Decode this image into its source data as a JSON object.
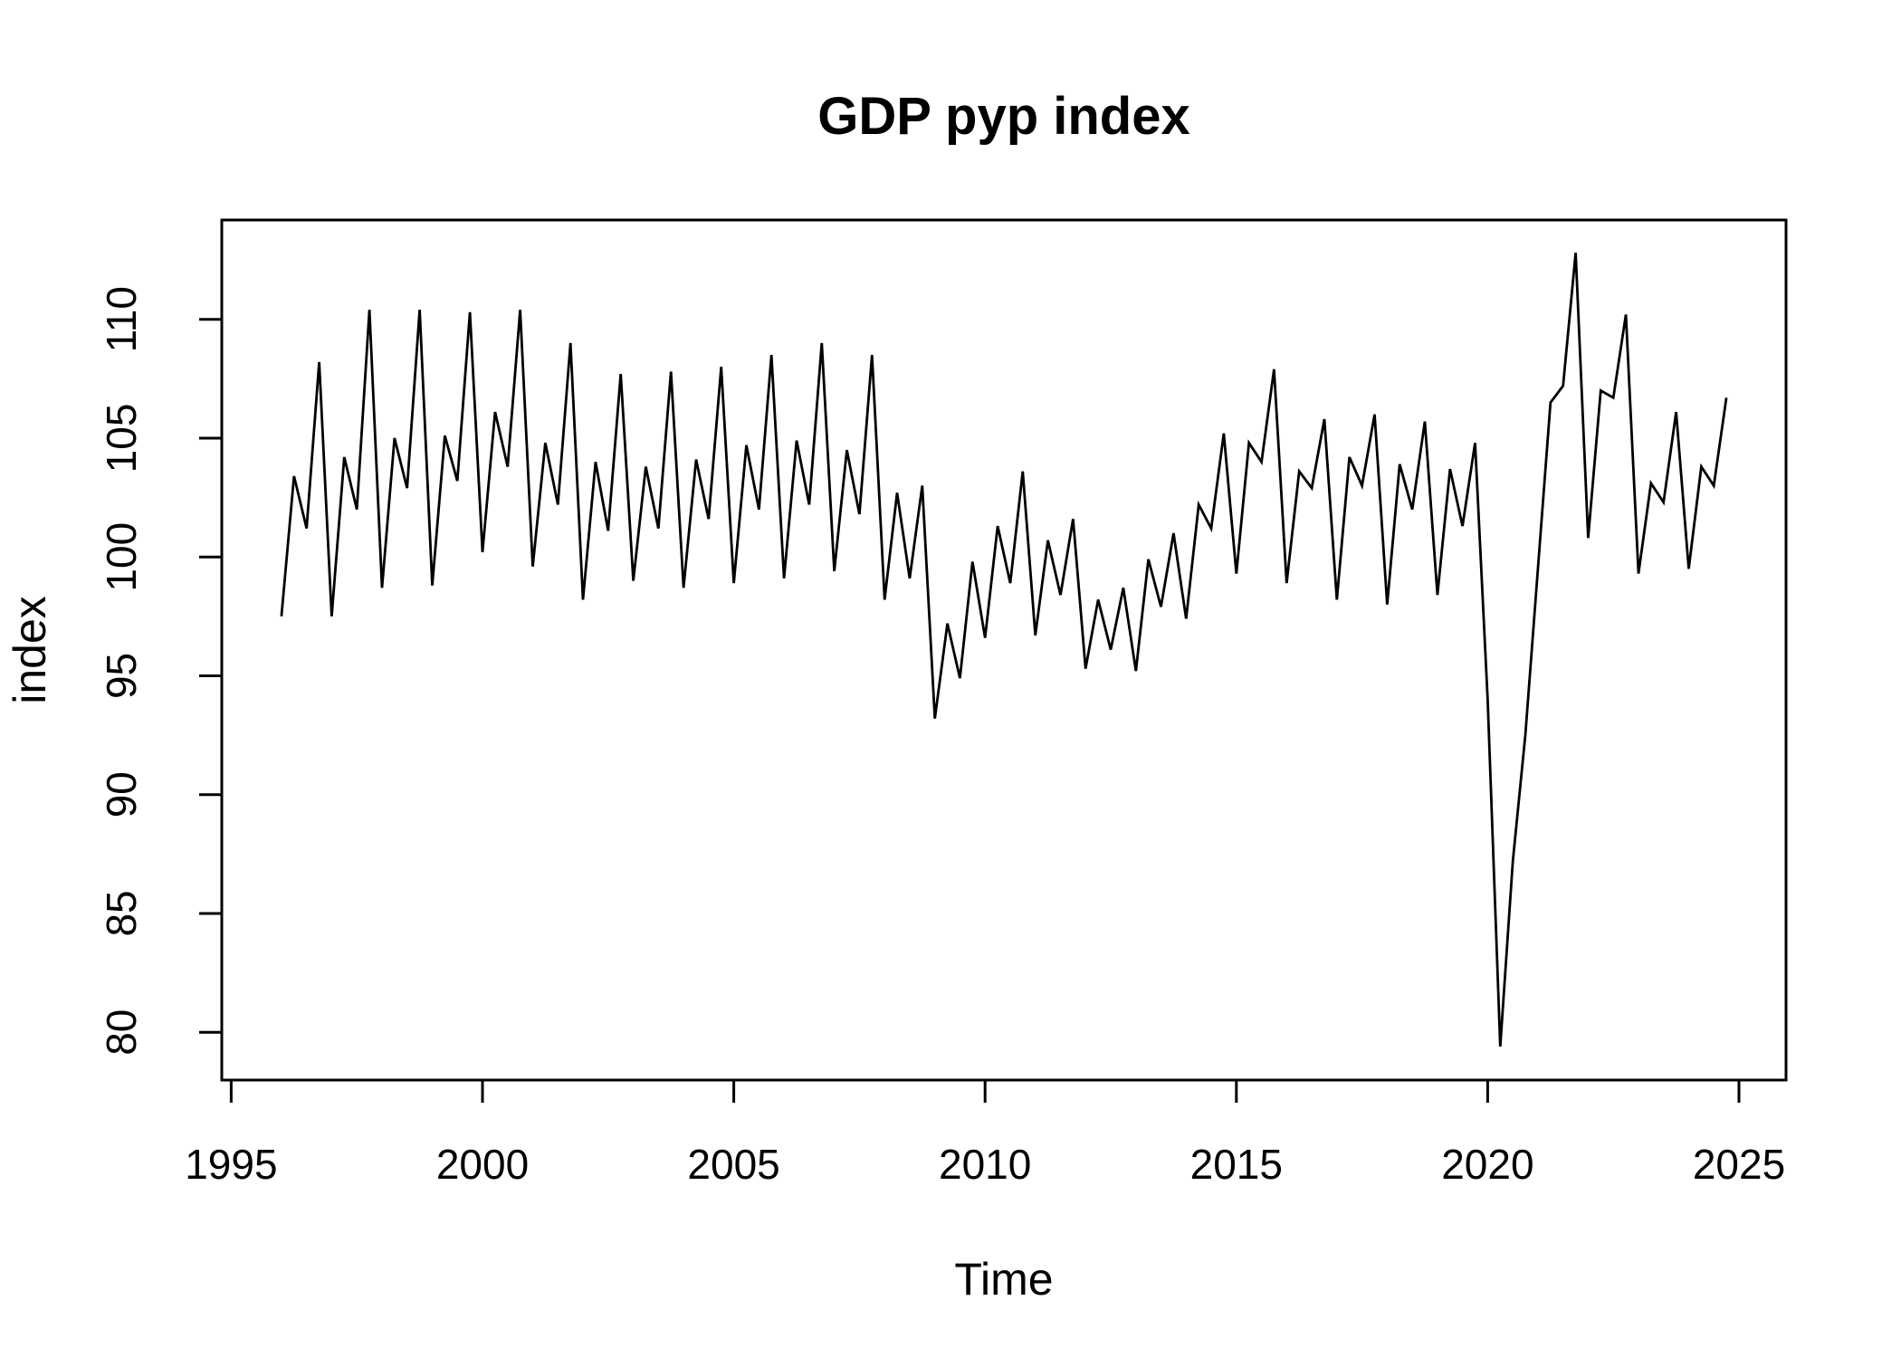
{
  "chart_data": {
    "type": "line",
    "title": "GDP pyp index",
    "xlabel": "Time",
    "ylabel": "index",
    "frequency": "quarterly",
    "x_start": 1996.0,
    "x_step": 0.25,
    "xlim": [
      1994.8,
      2025.9
    ],
    "ylim": [
      78.0,
      114.2
    ],
    "x_ticks": [
      1995,
      2000,
      2005,
      2010,
      2015,
      2020,
      2025
    ],
    "y_ticks": [
      80,
      85,
      90,
      95,
      100,
      105,
      110
    ],
    "grid": false,
    "legend_position": "none",
    "line_color": "#000000",
    "background_color": "#ffffff",
    "series": [
      {
        "name": "GDP pyp index",
        "values": [
          97.5,
          103.4,
          101.2,
          108.2,
          97.5,
          104.2,
          102.0,
          110.4,
          98.7,
          105.0,
          102.9,
          110.4,
          98.8,
          105.1,
          103.2,
          110.3,
          100.2,
          106.1,
          103.8,
          110.4,
          99.6,
          104.8,
          102.2,
          109.0,
          98.2,
          104.0,
          101.1,
          107.7,
          99.0,
          103.8,
          101.2,
          107.8,
          98.7,
          104.1,
          101.6,
          108.0,
          98.9,
          104.7,
          102.0,
          108.5,
          99.1,
          104.9,
          102.2,
          109.0,
          99.4,
          104.5,
          101.8,
          108.5,
          98.2,
          102.7,
          99.1,
          103.0,
          93.2,
          97.2,
          94.9,
          99.8,
          96.6,
          101.3,
          98.9,
          103.6,
          96.7,
          100.7,
          98.4,
          101.6,
          95.3,
          98.2,
          96.1,
          98.7,
          95.2,
          99.9,
          97.9,
          101.0,
          97.4,
          102.2,
          101.2,
          105.2,
          99.3,
          104.8,
          104.0,
          107.9,
          98.9,
          103.6,
          102.9,
          105.8,
          98.2,
          104.2,
          103.0,
          106.0,
          98.0,
          103.9,
          102.0,
          105.7,
          98.4,
          103.7,
          101.3,
          104.8,
          94.0,
          79.4,
          87.2,
          92.5,
          99.5,
          106.5,
          107.2,
          112.8,
          100.8,
          107.0,
          106.7,
          110.2,
          99.3,
          103.1,
          102.3,
          106.1,
          99.5,
          103.8,
          103.0,
          106.7
        ]
      }
    ]
  }
}
